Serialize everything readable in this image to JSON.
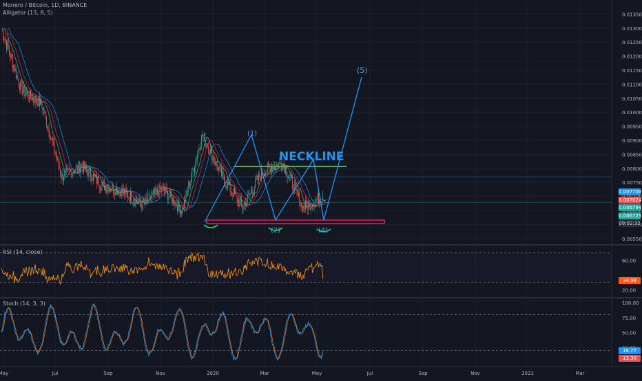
{
  "header": {
    "symbol": "Monero / Bitcoin, 1D, BINANCE",
    "indicator": "Alligator (13, 8, 5)"
  },
  "rsi_label": "RSI (14, close)",
  "stoch_label": "Stoch (14, 3, 3)",
  "price_tags": {
    "blue": "0.007700",
    "red": "0.007024",
    "green1": "0.006794",
    "green2": "0.006725",
    "countdown": "09:02:32",
    "rsi": "34.98",
    "stoch_blue": "18.77",
    "stoch_red": "13.30"
  },
  "annotations": {
    "neckline": "NECKLINE",
    "w1": "(1)",
    "w2": "(2)",
    "w4": "(4)",
    "w5": "(5)"
  },
  "colors": {
    "background": "#131722",
    "up": "#26a69a",
    "down": "#ef5350",
    "neckline": "#2196f3",
    "neckline_line": "#4caf50",
    "support": "#e91e63",
    "wave": "#2196f3",
    "rsi": "#ff9800",
    "stoch_k": "#2196f3",
    "stoch_d": "#ef6c00"
  },
  "chart_data": [
    {
      "type": "candlestick",
      "title": "Monero / Bitcoin, 1D, BINANCE",
      "ylim": [
        0.0053,
        0.014
      ],
      "y_ticks": [
        "0.005500",
        "0.006000",
        "0.006500",
        "0.007000",
        "0.007500",
        "0.008000",
        "0.008500",
        "0.009000",
        "0.009500",
        "0.010000",
        "0.010500",
        "0.011000",
        "0.011500",
        "0.012000",
        "0.012500",
        "0.013000",
        "0.013500",
        "0.014000"
      ],
      "x_ticks": [
        "May",
        "Jul",
        "Sep",
        "Nov",
        "2020",
        "Mar",
        "May",
        "Jul",
        "Sep",
        "Nov",
        "2021",
        "Mar"
      ],
      "price_path": [
        [
          "May",
          0.013
        ],
        [
          "Jun",
          0.0108
        ],
        [
          "early Jul",
          0.0103
        ],
        [
          "mid Jul",
          0.0077
        ],
        [
          "Aug",
          0.0081
        ],
        [
          "Sep",
          0.0074
        ],
        [
          "Oct",
          0.0072
        ],
        [
          "Nov",
          0.0067
        ],
        [
          "Dec",
          0.0073
        ],
        [
          "2020",
          0.0065
        ],
        [
          "Feb",
          0.0092
        ],
        [
          "Mar",
          0.0077
        ],
        [
          "early Mar",
          0.0066
        ],
        [
          "Apr",
          0.0079
        ],
        [
          "late Apr",
          0.0082
        ],
        [
          "May",
          0.0066
        ],
        [
          "now",
          0.00702
        ]
      ],
      "alligator": [
        "jaw",
        "teeth",
        "lips"
      ]
    },
    {
      "type": "line",
      "title": "RSI (14, close)",
      "ylim": [
        10,
        80
      ],
      "y_ticks": [
        "20.00",
        "60.00"
      ],
      "dashed_levels": [
        70,
        30
      ],
      "last": 34.98
    },
    {
      "type": "line",
      "title": "Stoch (14, 3, 3)",
      "ylim": [
        0,
        100
      ],
      "y_ticks": [
        "25.00",
        "50.00",
        "75.00",
        "100.00"
      ],
      "dashed_levels": [
        80,
        20
      ],
      "series": [
        {
          "name": "K",
          "last": 18.77
        },
        {
          "name": "D",
          "last": 13.3
        }
      ]
    }
  ]
}
